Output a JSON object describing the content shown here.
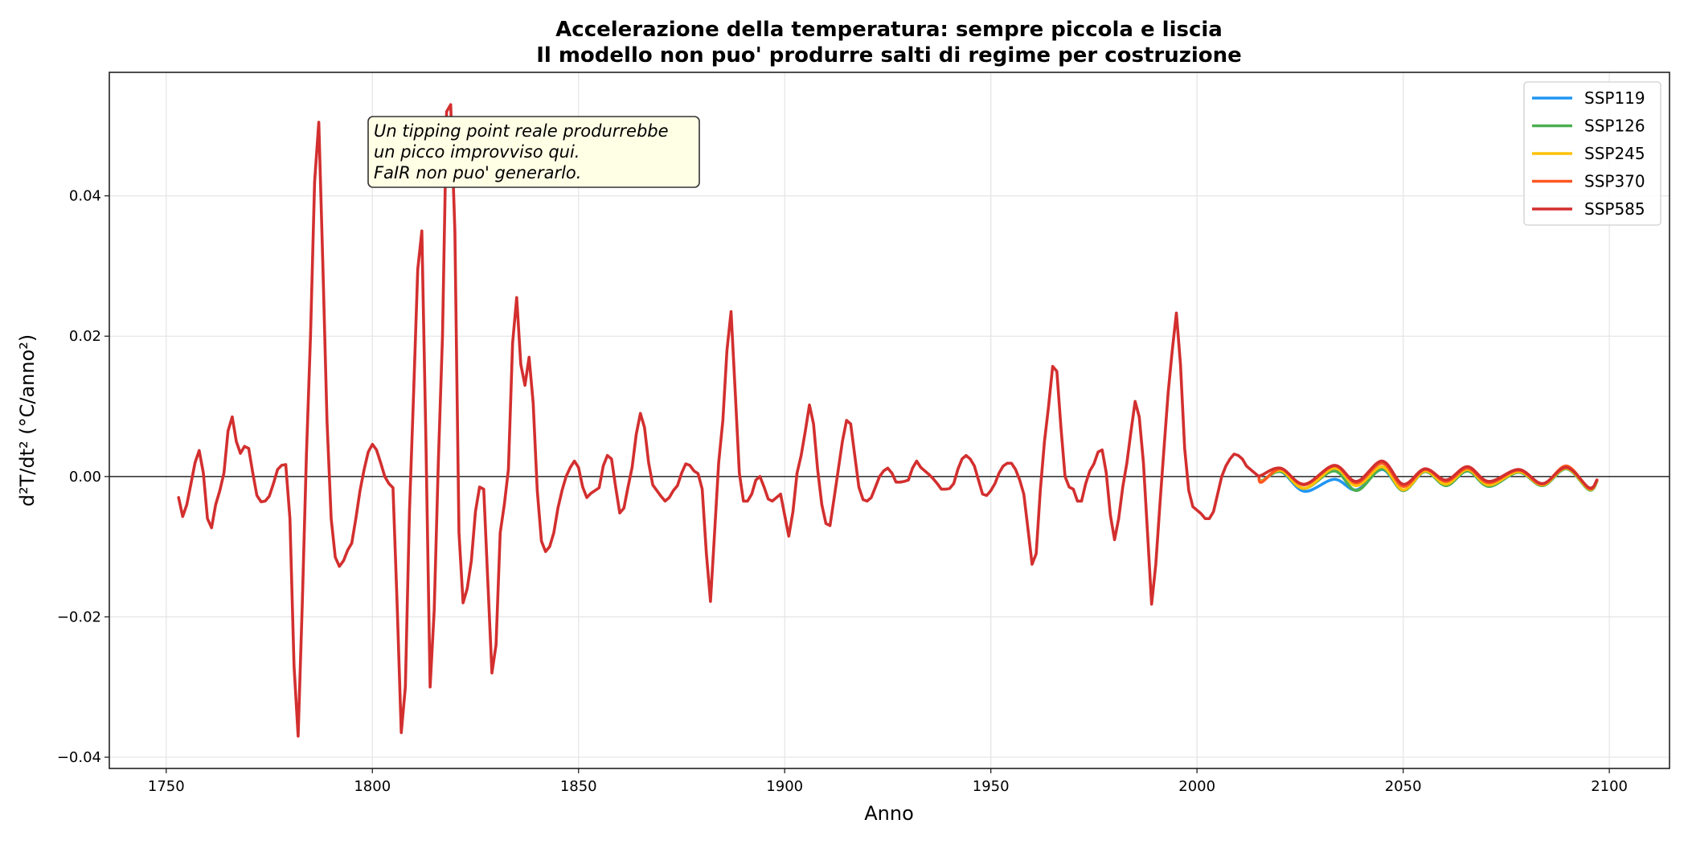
{
  "chart_data": {
    "type": "line",
    "title_lines": [
      "Accelerazione della temperatura: sempre piccola e liscia",
      "Il modello non puo' produrre salti di regime per costruzione"
    ],
    "xlabel": "Anno",
    "ylabel": "d²T/dt² (°C/anno²)",
    "xlim": [
      1736.2,
      2114.6
    ],
    "ylim": [
      -0.0416,
      0.0576
    ],
    "x_ticks": [
      1750,
      1800,
      1850,
      1900,
      1950,
      2000,
      2050,
      2100
    ],
    "x_tick_labels": [
      "1750",
      "1800",
      "1850",
      "1900",
      "1950",
      "2000",
      "2050",
      "2100"
    ],
    "y_ticks": [
      -0.04,
      -0.02,
      0.0,
      0.02,
      0.04
    ],
    "y_tick_labels": [
      "−0.04",
      "−0.02",
      "0.00",
      "0.02",
      "0.04"
    ],
    "grid": true,
    "zero_line": true,
    "legend_placement": "top-right",
    "annotation": {
      "lines": [
        "Un tipping point reale produrrebbe",
        "un picco improvviso qui.",
        "FaIR non puo' generarlo."
      ],
      "x": 1800,
      "y": 0.046,
      "box_color": "#FFFFE6"
    },
    "historical": {
      "color": "#D32F2F",
      "x": [
        1753,
        1754,
        1755,
        1756,
        1757,
        1758,
        1759,
        1760,
        1761,
        1762,
        1763,
        1764,
        1765,
        1766,
        1767,
        1768,
        1769,
        1770,
        1771,
        1772,
        1773,
        1774,
        1775,
        1776,
        1777,
        1778,
        1779,
        1780,
        1781,
        1782,
        1783,
        1784,
        1785,
        1786,
        1787,
        1788,
        1789,
        1790,
        1791,
        1792,
        1793,
        1794,
        1795,
        1796,
        1797,
        1798,
        1799,
        1800,
        1801,
        1802,
        1803,
        1804,
        1805,
        1806,
        1807,
        1808,
        1809,
        1810,
        1811,
        1812,
        1813,
        1814,
        1815,
        1816,
        1817,
        1818,
        1819,
        1820,
        1821,
        1822,
        1823,
        1824,
        1825,
        1826,
        1827,
        1828,
        1829,
        1830,
        1831,
        1832,
        1833,
        1834,
        1835,
        1836,
        1837,
        1838,
        1839,
        1840,
        1841,
        1842,
        1843,
        1844,
        1845,
        1846,
        1847,
        1848,
        1849,
        1850,
        1851,
        1852,
        1853,
        1854,
        1855,
        1856,
        1857,
        1858,
        1859,
        1860,
        1861,
        1862,
        1863,
        1864,
        1865,
        1866,
        1867,
        1868,
        1869,
        1870,
        1871,
        1872,
        1873,
        1874,
        1875,
        1876,
        1877,
        1878,
        1879,
        1880,
        1881,
        1882,
        1883,
        1884,
        1885,
        1886,
        1887,
        1888,
        1889,
        1890,
        1891,
        1892,
        1893,
        1894,
        1895,
        1896,
        1897,
        1898,
        1899,
        1900,
        1901,
        1902,
        1903,
        1904,
        1905,
        1906,
        1907,
        1908,
        1909,
        1910,
        1911,
        1912,
        1913,
        1914,
        1915,
        1916,
        1917,
        1918,
        1919,
        1920,
        1921,
        1922,
        1923,
        1924,
        1925,
        1926,
        1927,
        1928,
        1929,
        1930,
        1931,
        1932,
        1933,
        1934,
        1935,
        1936,
        1937,
        1938,
        1939,
        1940,
        1941,
        1942,
        1943,
        1944,
        1945,
        1946,
        1947,
        1948,
        1949,
        1950,
        1951,
        1952,
        1953,
        1954,
        1955,
        1956,
        1957,
        1958,
        1959,
        1960,
        1961,
        1962,
        1963,
        1964,
        1965,
        1966,
        1967,
        1968,
        1969,
        1970,
        1971,
        1972,
        1973,
        1974,
        1975,
        1976,
        1977,
        1978,
        1979,
        1980,
        1981,
        1982,
        1983,
        1984,
        1985,
        1986,
        1987,
        1988,
        1989,
        1990,
        1991,
        1992,
        1993,
        1994,
        1995,
        1996,
        1997,
        1998,
        1999,
        2000,
        2001,
        2002,
        2003,
        2004,
        2005,
        2006,
        2007,
        2008,
        2009,
        2010,
        2011,
        2012,
        2013,
        2014,
        2015
      ],
      "y": [
        -0.003,
        -0.0057,
        -0.004,
        -0.001,
        0.002,
        0.0037,
        0.0005,
        -0.006,
        -0.0073,
        -0.004,
        -0.002,
        0.0005,
        0.0065,
        0.0085,
        0.005,
        0.0033,
        0.0043,
        0.004,
        0.0005,
        -0.0027,
        -0.0036,
        -0.0035,
        -0.0028,
        -0.001,
        0.001,
        0.0016,
        0.0017,
        -0.006,
        -0.027,
        -0.037,
        -0.018,
        0.003,
        0.02,
        0.042,
        0.0505,
        0.03,
        0.008,
        -0.006,
        -0.0115,
        -0.0128,
        -0.012,
        -0.0105,
        -0.0095,
        -0.006,
        -0.002,
        0.001,
        0.0035,
        0.0046,
        0.0038,
        0.002,
        0.0,
        -0.001,
        -0.0016,
        -0.018,
        -0.0365,
        -0.03,
        -0.005,
        0.012,
        0.0295,
        0.035,
        0.005,
        -0.03,
        -0.019,
        0.002,
        0.02,
        0.052,
        0.053,
        0.035,
        -0.008,
        -0.018,
        -0.016,
        -0.012,
        -0.005,
        -0.0015,
        -0.0018,
        -0.015,
        -0.028,
        -0.024,
        -0.008,
        -0.004,
        0.001,
        0.019,
        0.0255,
        0.016,
        0.013,
        0.017,
        0.0105,
        -0.002,
        -0.0092,
        -0.0107,
        -0.01,
        -0.008,
        -0.0045,
        -0.002,
        0.0,
        0.0013,
        0.0022,
        0.0013,
        -0.0015,
        -0.003,
        -0.0024,
        -0.002,
        -0.0016,
        0.0015,
        0.003,
        0.0025,
        -0.0015,
        -0.0052,
        -0.0045,
        -0.0015,
        0.0013,
        0.006,
        0.009,
        0.007,
        0.002,
        -0.0012,
        -0.002,
        -0.0028,
        -0.0035,
        -0.003,
        -0.002,
        -0.0013,
        0.0005,
        0.0018,
        0.0016,
        0.0008,
        0.0004,
        -0.0018,
        -0.011,
        -0.0178,
        -0.008,
        0.002,
        0.008,
        0.018,
        0.0235,
        0.012,
        0.0005,
        -0.0035,
        -0.0035,
        -0.0025,
        -0.0005,
        0.0,
        -0.0015,
        -0.0032,
        -0.0035,
        -0.003,
        -0.0025,
        -0.0055,
        -0.0085,
        -0.005,
        0.0005,
        0.003,
        0.0065,
        0.0102,
        0.0075,
        0.001,
        -0.004,
        -0.0067,
        -0.007,
        -0.003,
        0.001,
        0.005,
        0.008,
        0.0075,
        0.003,
        -0.0015,
        -0.0033,
        -0.0035,
        -0.003,
        -0.0015,
        0.0,
        0.0008,
        0.0012,
        0.0005,
        -0.0008,
        -0.0008,
        -0.0007,
        -0.0005,
        0.0012,
        0.0022,
        0.0013,
        0.0008,
        0.0003,
        -0.0003,
        -0.001,
        -0.0018,
        -0.0018,
        -0.0017,
        -0.001,
        0.001,
        0.0025,
        0.003,
        0.0025,
        0.0015,
        -0.0005,
        -0.0025,
        -0.0027,
        -0.002,
        -0.001,
        0.0005,
        0.0015,
        0.0019,
        0.0019,
        0.001,
        -0.0005,
        -0.0025,
        -0.0075,
        -0.0125,
        -0.011,
        -0.002,
        0.005,
        0.01,
        0.0157,
        0.015,
        0.007,
        0.0,
        -0.0015,
        -0.0018,
        -0.0035,
        -0.0035,
        -0.001,
        0.0008,
        0.0018,
        0.0035,
        0.0038,
        0.0005,
        -0.0055,
        -0.009,
        -0.006,
        -0.0015,
        0.002,
        0.0065,
        0.0107,
        0.0085,
        0.002,
        -0.008,
        -0.0182,
        -0.0125,
        -0.004,
        0.004,
        0.012,
        0.018,
        0.0233,
        0.016,
        0.004,
        -0.002,
        -0.0043,
        -0.0048,
        -0.0053,
        -0.006,
        -0.006,
        -0.005,
        -0.0025,
        0.0,
        0.0015,
        0.0025,
        0.0032,
        0.003,
        0.0025,
        0.0015,
        0.001,
        0.0005,
        0.0
      ]
    },
    "x_projection": [
      2015,
      2015.7,
      2020.3,
      2026,
      2033.3,
      2038.7,
      2044.9,
      2050,
      2055.3,
      2060.4,
      2065.6,
      2070.8,
      2078,
      2083.8,
      2089.6,
      2095.1,
      2097
    ],
    "series": [
      {
        "name": "SSP119",
        "color": "#2196F3",
        "values": [
          0,
          -0.0006,
          0.0007,
          -0.0021,
          -0.0004,
          -0.0019,
          0.001,
          -0.002,
          0.0007,
          -0.0013,
          0.0008,
          -0.0014,
          0.0006,
          -0.0013,
          0.0011,
          -0.0019,
          -0.0007
        ]
      },
      {
        "name": "SSP126",
        "color": "#4CAF50",
        "values": [
          0,
          -0.0006,
          0.0007,
          -0.0017,
          0.0008,
          -0.002,
          0.0011,
          -0.002,
          0.0007,
          -0.0013,
          0.0008,
          -0.0014,
          0.0006,
          -0.0013,
          0.0011,
          -0.0019,
          -0.0007
        ]
      },
      {
        "name": "SSP245",
        "color": "#FFC107",
        "values": [
          0,
          -0.0007,
          0.0009,
          -0.0017,
          0.0012,
          -0.0013,
          0.0014,
          -0.0019,
          0.0008,
          -0.0011,
          0.001,
          -0.0012,
          0.0007,
          -0.0012,
          0.0012,
          -0.0018,
          -0.0006
        ]
      },
      {
        "name": "SSP370",
        "color": "#FF5722",
        "values": [
          0,
          -0.0008,
          0.0011,
          -0.0012,
          0.0015,
          -0.0009,
          0.0019,
          -0.0014,
          0.001,
          -0.0007,
          0.0012,
          -0.0009,
          0.0009,
          -0.0011,
          0.0015,
          -0.0017,
          -0.0005
        ]
      },
      {
        "name": "SSP585",
        "color": "#D32F2F",
        "values": [
          0,
          0.0002,
          0.0012,
          -0.0011,
          0.0016,
          -0.0007,
          0.0022,
          -0.0011,
          0.0011,
          -0.0005,
          0.0014,
          -0.0007,
          0.001,
          -0.001,
          0.0013,
          -0.0016,
          -0.0005
        ]
      }
    ]
  }
}
